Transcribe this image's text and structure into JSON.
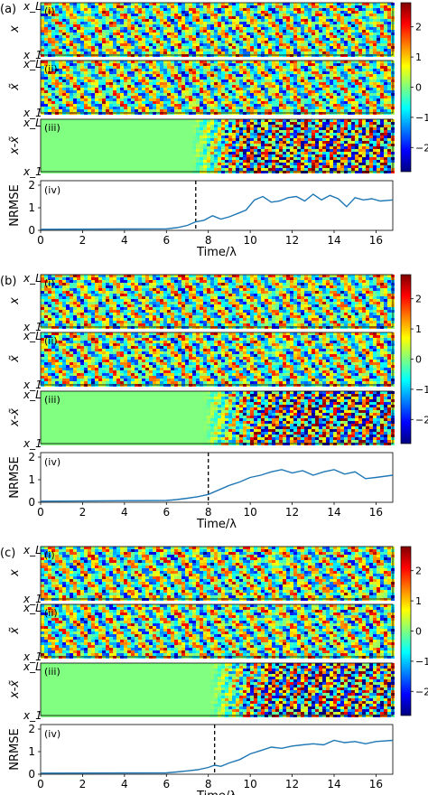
{
  "figure": {
    "panel_labels": [
      "(a)",
      "(b)",
      "(c)"
    ],
    "subpanel_labels": [
      "(i)",
      "(ii)",
      "(iii)",
      "(iv)"
    ],
    "heatmap_ylabels": [
      "x",
      "x̃",
      "x-x̃"
    ],
    "heatmap_ytick_top": "x_L",
    "heatmap_ytick_bottom": "x_1",
    "colorbar_ticks": [
      "2",
      "1",
      "0",
      "−1",
      "−2"
    ],
    "colors": {
      "line": "#1f77b4",
      "zero_field": "#7ef27e"
    }
  },
  "chart_data": [
    {
      "type": "line",
      "panel": "(a)",
      "xlabel": "Time/λ",
      "ylabel": "NRMSE",
      "xlim": [
        0,
        16.8
      ],
      "ylim": [
        0,
        2.2
      ],
      "xticks": [
        0,
        2,
        4,
        6,
        8,
        10,
        12,
        14,
        16
      ],
      "yticks": [
        0,
        1,
        2
      ],
      "threshold_time": 7.4,
      "x": [
        0,
        6,
        6.5,
        7,
        7.4,
        7.8,
        8.2,
        8.6,
        9,
        9.4,
        9.8,
        10.2,
        10.6,
        11,
        11.4,
        11.8,
        12.2,
        12.6,
        13,
        13.4,
        13.8,
        14.2,
        14.6,
        15,
        15.4,
        15.8,
        16.2,
        16.8
      ],
      "y": [
        0.05,
        0.07,
        0.12,
        0.22,
        0.38,
        0.45,
        0.65,
        0.5,
        0.6,
        0.75,
        0.9,
        1.35,
        1.5,
        1.25,
        1.3,
        1.45,
        1.5,
        1.3,
        1.6,
        1.35,
        1.55,
        1.4,
        1.05,
        1.45,
        1.35,
        1.4,
        1.3,
        1.35
      ]
    },
    {
      "type": "line",
      "panel": "(b)",
      "xlabel": "Time/λ",
      "ylabel": "NRMSE",
      "xlim": [
        0,
        16.8
      ],
      "ylim": [
        0,
        2.2
      ],
      "xticks": [
        0,
        2,
        4,
        6,
        8,
        10,
        12,
        14,
        16
      ],
      "yticks": [
        0,
        1,
        2
      ],
      "threshold_time": 8.0,
      "x": [
        0,
        6,
        6.5,
        7,
        7.5,
        8,
        8.5,
        9,
        9.5,
        10,
        10.5,
        11,
        11.5,
        12,
        12.5,
        13,
        13.5,
        14,
        14.5,
        15,
        15.5,
        16,
        16.8
      ],
      "y": [
        0.05,
        0.08,
        0.12,
        0.18,
        0.25,
        0.35,
        0.55,
        0.75,
        0.9,
        1.1,
        1.2,
        1.35,
        1.45,
        1.3,
        1.4,
        1.2,
        1.35,
        1.45,
        1.25,
        1.35,
        1.05,
        1.1,
        1.2
      ]
    },
    {
      "type": "line",
      "panel": "(c)",
      "xlabel": "Time/λ",
      "ylabel": "NRMSE",
      "xlim": [
        0,
        16.8
      ],
      "ylim": [
        0,
        2.2
      ],
      "xticks": [
        0,
        2,
        4,
        6,
        8,
        10,
        12,
        14,
        16
      ],
      "yticks": [
        0,
        1,
        2
      ],
      "threshold_time": 8.3,
      "x": [
        0,
        6,
        6.5,
        7,
        7.5,
        8,
        8.3,
        8.6,
        9,
        9.5,
        10,
        10.5,
        11,
        11.5,
        12,
        12.5,
        13,
        13.5,
        14,
        14.5,
        15,
        15.5,
        16,
        16.8
      ],
      "y": [
        0.05,
        0.06,
        0.1,
        0.15,
        0.2,
        0.3,
        0.4,
        0.35,
        0.5,
        0.65,
        0.9,
        1.05,
        1.2,
        1.15,
        1.25,
        1.3,
        1.35,
        1.3,
        1.5,
        1.4,
        1.45,
        1.35,
        1.45,
        1.5
      ]
    }
  ]
}
